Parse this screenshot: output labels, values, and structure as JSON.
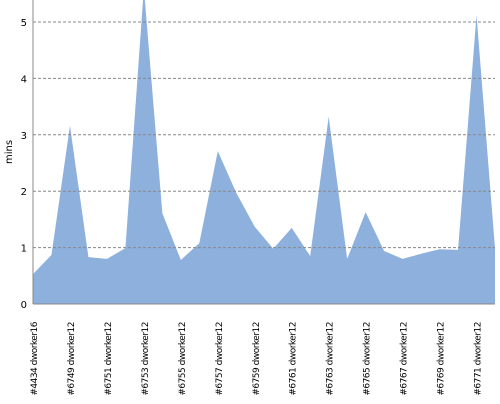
{
  "chart_data": {
    "type": "area",
    "y_label": "mins",
    "categories": [
      "#4434 dworker16",
      null,
      "#6749 dworker12",
      null,
      "#6751 dworker12",
      null,
      "#6753 dworker12",
      null,
      "#6755 dworker12",
      null,
      "#6757 dworker12",
      null,
      "#6759 dworker12",
      null,
      "#6761 dworker12",
      null,
      "#6763 dworker12",
      null,
      "#6765 dworker12",
      null,
      "#6767 dworker12",
      null,
      "#6769 dworker12",
      null,
      "#6771 dworker12",
      null
    ],
    "values": [
      0.53,
      0.87,
      3.16,
      0.83,
      0.8,
      0.99,
      5.6,
      1.61,
      0.78,
      1.08,
      2.71,
      1.97,
      1.37,
      0.98,
      1.35,
      0.85,
      3.32,
      0.8,
      1.63,
      0.94,
      0.8,
      0.89,
      0.97,
      0.96,
      5.12,
      0.99
    ],
    "color": "#8eb0dc",
    "ylim": [
      0,
      5.39
    ],
    "yticks": [
      0,
      1,
      2,
      3,
      4,
      5
    ],
    "grid": true
  }
}
